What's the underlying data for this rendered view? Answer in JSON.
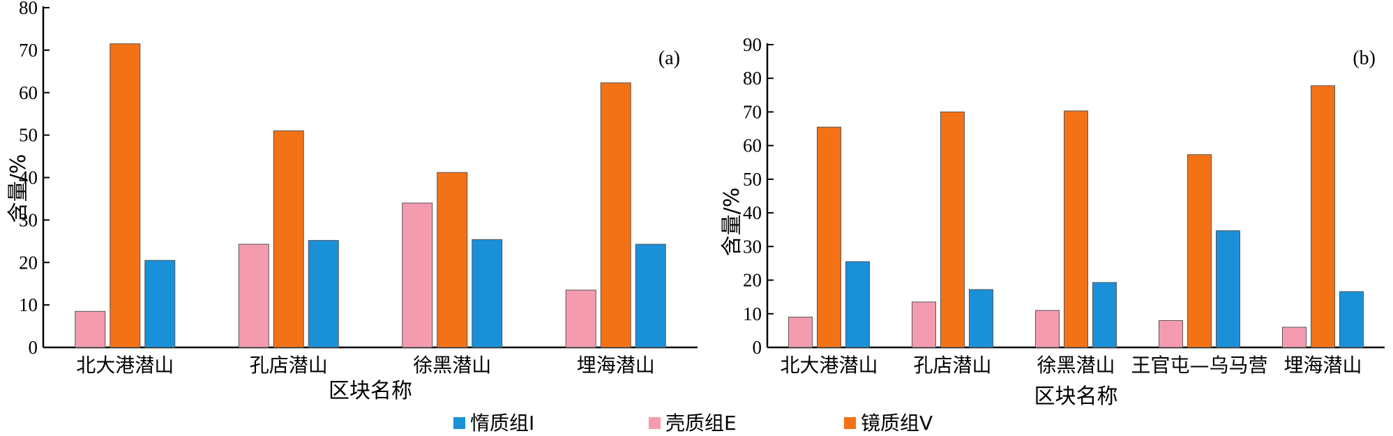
{
  "legend": [
    {
      "label": "惰质组I",
      "color": "#1a90d9",
      "key": "inertinite"
    },
    {
      "label": "壳质组E",
      "color": "#f59bb0",
      "key": "exinite"
    },
    {
      "label": "镜质组V",
      "color": "#f47216",
      "key": "vitrinite"
    }
  ],
  "chart_data": [
    {
      "type": "bar",
      "panel_label": "(a)",
      "xlabel": "区块名称",
      "ylabel": "含量/%",
      "ylim": [
        0,
        80
      ],
      "yticks": [
        0,
        10,
        20,
        30,
        40,
        50,
        60,
        70,
        80
      ],
      "grid": false,
      "categories": [
        "北大港潜山",
        "孔店潜山",
        "徐黑潜山",
        "埋海潜山"
      ],
      "series": [
        {
          "name": "壳质组E",
          "color": "#f59bb0",
          "values": [
            8.5,
            24.3,
            34.0,
            13.5
          ]
        },
        {
          "name": "镜质组V",
          "color": "#f47216",
          "values": [
            71.5,
            51.0,
            41.2,
            62.3
          ]
        },
        {
          "name": "惰质组I",
          "color": "#1a90d9",
          "values": [
            20.5,
            25.2,
            25.4,
            24.3
          ]
        }
      ]
    },
    {
      "type": "bar",
      "panel_label": "(b)",
      "xlabel": "区块名称",
      "ylabel": "含量/%",
      "ylim": [
        0,
        90
      ],
      "yticks": [
        0,
        10,
        20,
        30,
        40,
        50,
        60,
        70,
        80,
        90
      ],
      "grid": false,
      "categories": [
        "北大港潜山",
        "孔店潜山",
        "徐黑潜山",
        "王官屯—乌马营",
        "埋海潜山"
      ],
      "series": [
        {
          "name": "壳质组E",
          "color": "#f59bb0",
          "values": [
            9.0,
            13.5,
            11.0,
            8.0,
            6.0
          ]
        },
        {
          "name": "镜质组V",
          "color": "#f47216",
          "values": [
            65.5,
            70.0,
            70.3,
            57.3,
            77.8
          ]
        },
        {
          "name": "惰质组I",
          "color": "#1a90d9",
          "values": [
            25.5,
            17.2,
            19.3,
            34.7,
            16.6
          ]
        }
      ]
    }
  ]
}
